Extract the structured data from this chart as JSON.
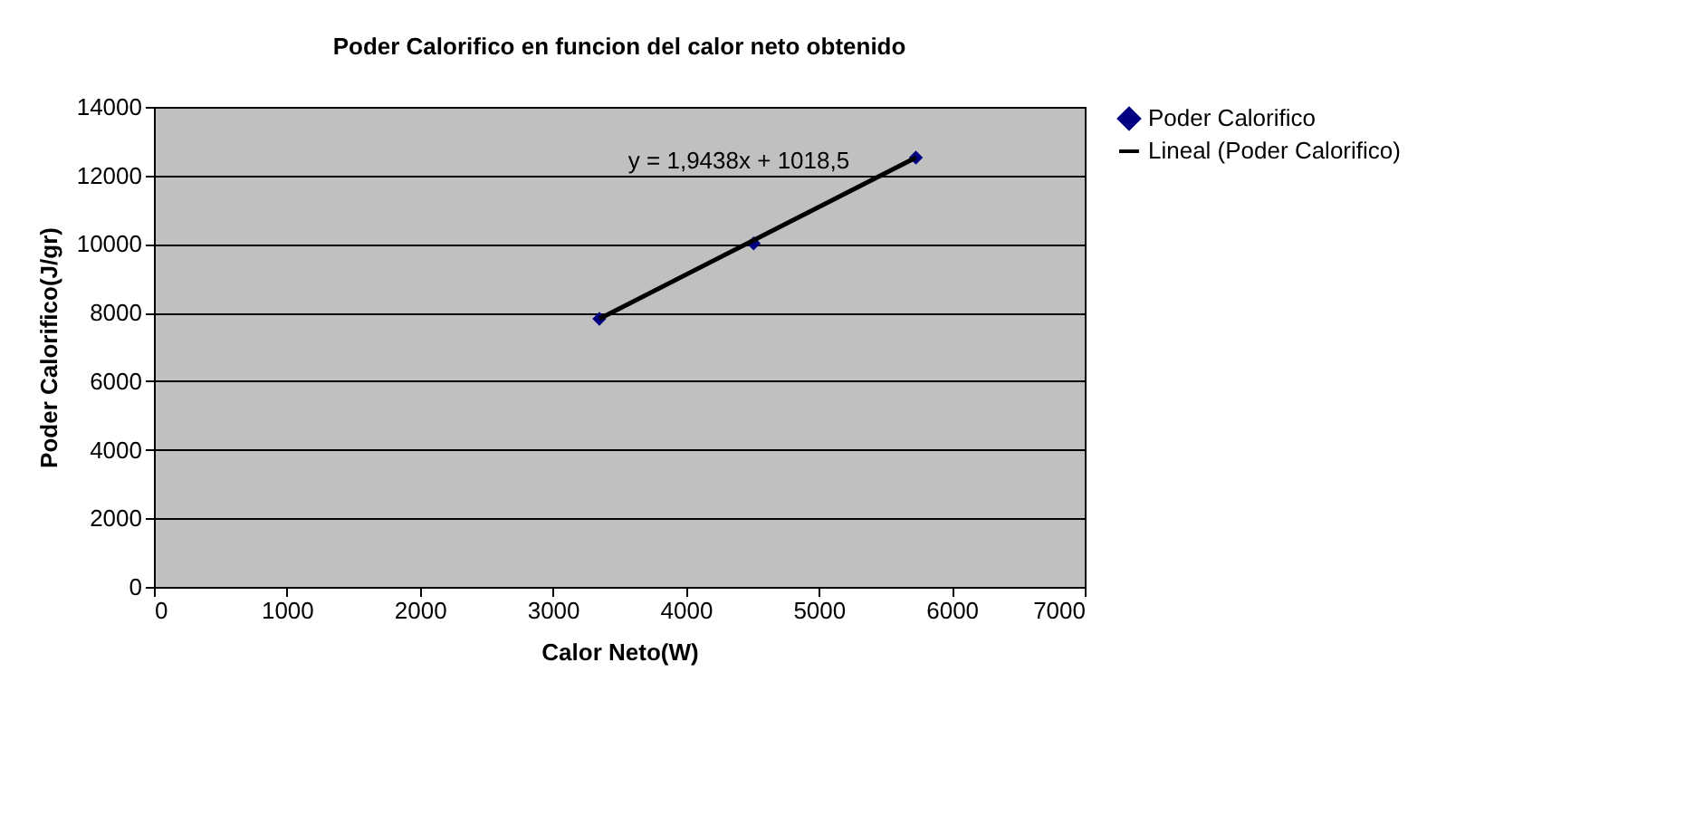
{
  "chart_data": {
    "type": "scatter",
    "title": "Poder Calorifico en funcion del calor neto obtenido",
    "xlabel": "Calor Neto(W)",
    "ylabel": "Poder Calorifico(J/gr)",
    "xlim": [
      0,
      7000
    ],
    "xticks": [
      0,
      1000,
      2000,
      3000,
      4000,
      5000,
      6000,
      7000
    ],
    "ylim": [
      0,
      14000
    ],
    "yticks": [
      0,
      2000,
      4000,
      6000,
      8000,
      10000,
      12000,
      14000
    ],
    "series": [
      {
        "name": "Poder Calorifico",
        "color": "#000080",
        "marker": "diamond",
        "x": [
          3350,
          4510,
          5730
        ],
        "values": [
          7820,
          10020,
          12520
        ]
      },
      {
        "name": "Lineal (Poder Calorifico)",
        "type": "line",
        "color": "#000000",
        "line_style": "solid",
        "x": [
          3350,
          5730
        ],
        "values": [
          7820,
          12520
        ]
      }
    ],
    "annotations": [
      "y = 1,9438x + 1018,5"
    ],
    "grid": "y",
    "legend": "right"
  }
}
